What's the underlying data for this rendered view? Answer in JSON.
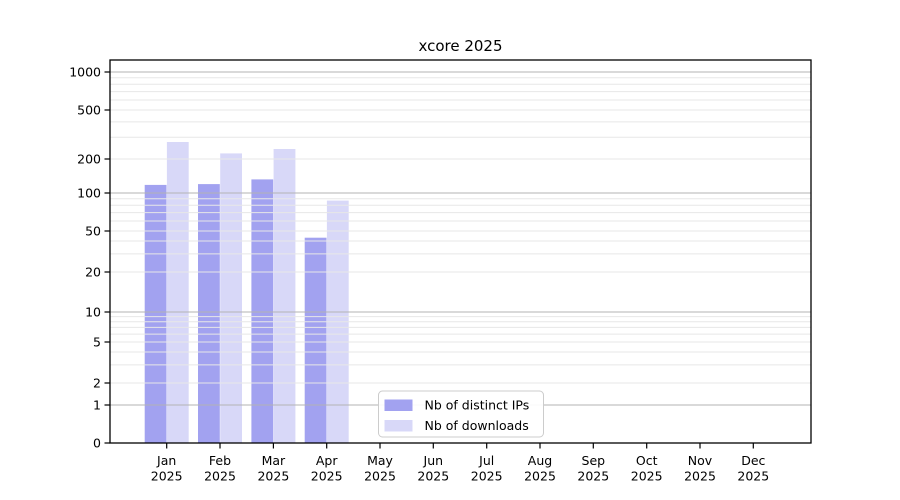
{
  "chart_data": {
    "type": "bar",
    "title": "xcore 2025",
    "yscale": "symlog",
    "grid": true,
    "ylim": [
      0,
      1400
    ],
    "categories": [
      {
        "month": "Jan",
        "year": "2025"
      },
      {
        "month": "Feb",
        "year": "2025"
      },
      {
        "month": "Mar",
        "year": "2025"
      },
      {
        "month": "Apr",
        "year": "2025"
      },
      {
        "month": "May",
        "year": "2025"
      },
      {
        "month": "Jun",
        "year": "2025"
      },
      {
        "month": "Jul",
        "year": "2025"
      },
      {
        "month": "Aug",
        "year": "2025"
      },
      {
        "month": "Sep",
        "year": "2025"
      },
      {
        "month": "Oct",
        "year": "2025"
      },
      {
        "month": "Nov",
        "year": "2025"
      },
      {
        "month": "Dec",
        "year": "2025"
      }
    ],
    "series": [
      {
        "name": "Nb of distinct IPs",
        "color": "#a2a2f0",
        "values": [
          118,
          120,
          132,
          43,
          0,
          0,
          0,
          0,
          0,
          0,
          0,
          0
        ]
      },
      {
        "name": "Nb of downloads",
        "color": "#d8d8f8",
        "values": [
          275,
          222,
          241,
          87,
          0,
          0,
          0,
          0,
          0,
          0,
          0,
          0
        ]
      }
    ],
    "yticks": [
      {
        "label": "0",
        "value": 0
      },
      {
        "label": "1",
        "value": 1
      },
      {
        "label": "2",
        "value": 2
      },
      {
        "label": "5",
        "value": 5
      },
      {
        "label": "10",
        "value": 10
      },
      {
        "label": "20",
        "value": 20
      },
      {
        "label": "50",
        "value": 50
      },
      {
        "label": "100",
        "value": 100
      },
      {
        "label": "200",
        "value": 200
      },
      {
        "label": "500",
        "value": 500
      },
      {
        "label": "1000",
        "value": 1000
      }
    ],
    "legend": {
      "position": "inside-bottom-center"
    },
    "colors": {
      "axis": "#000000",
      "grid_minor": "#e7e7e7",
      "grid_major": "#b3b3b3",
      "legend_border": "#cccccc",
      "legend_bg": "#ffffff"
    }
  }
}
